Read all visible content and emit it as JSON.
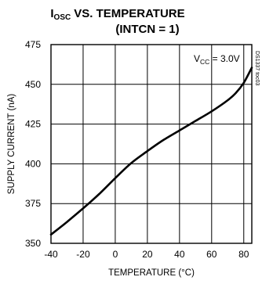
{
  "chart_data": {
    "type": "line",
    "title_main": "VS. TEMPERATURE",
    "title_symbol": "I",
    "title_symbol_sub": "OSC",
    "subtitle": "(INTCN = 1)",
    "xlabel": "TEMPERATURE (°C)",
    "ylabel": "SUPPLY CURRENT (nA)",
    "xlim": [
      -40,
      85
    ],
    "ylim": [
      350,
      475
    ],
    "x_ticks": [
      -40,
      -20,
      0,
      20,
      40,
      60,
      80
    ],
    "y_ticks": [
      350,
      375,
      400,
      425,
      450,
      475
    ],
    "x_tick_labels": [
      "-40",
      "-20",
      "0",
      "20",
      "40",
      "60",
      "80"
    ],
    "y_tick_labels": [
      "350",
      "375",
      "400",
      "425",
      "450",
      "475"
    ],
    "grid": true,
    "annotation": {
      "base": "V",
      "sub": "CC",
      "rest": " = 3.0V"
    },
    "figure_code": "DS1337 toc03",
    "series": [
      {
        "x": [
          -40,
          -30,
          -20,
          -10,
          0,
          10,
          20,
          30,
          40,
          50,
          60,
          70,
          75,
          80,
          85
        ],
        "y": [
          355.5,
          363.5,
          372,
          381,
          391,
          400.5,
          408,
          415,
          421,
          427,
          433,
          440,
          444.5,
          451,
          460.5
        ]
      }
    ]
  }
}
